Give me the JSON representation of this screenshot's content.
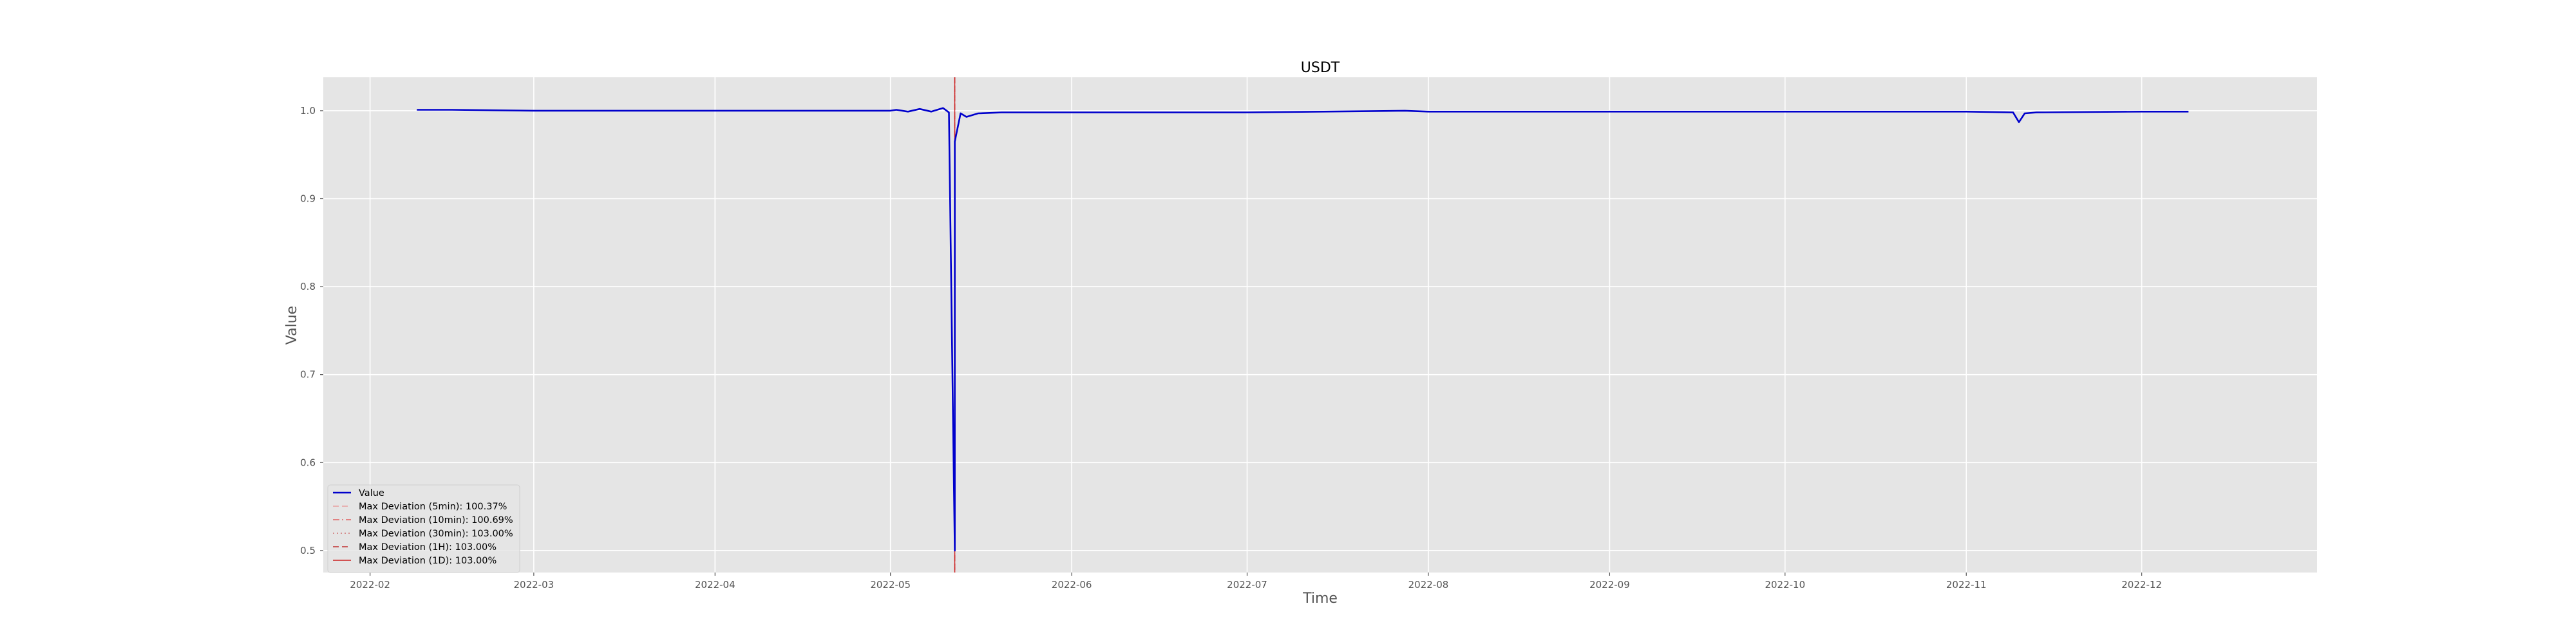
{
  "chart_data": {
    "type": "line",
    "title": "USDT",
    "xlabel": "Time",
    "ylabel": "Value",
    "x_range": [
      "2022-01-24",
      "2022-12-31"
    ],
    "ylim": [
      0.475,
      1.038
    ],
    "x_ticks": [
      "2022-02",
      "2022-03",
      "2022-04",
      "2022-05",
      "2022-06",
      "2022-07",
      "2022-08",
      "2022-09",
      "2022-10",
      "2022-11",
      "2022-12"
    ],
    "y_ticks": [
      "0.5",
      "0.6",
      "0.7",
      "0.8",
      "0.9",
      "1.0"
    ],
    "grid": true,
    "legend_position": "lower-left",
    "series": [
      {
        "name": "Value",
        "color": "#0000cc",
        "x": [
          "2022-02-09",
          "2022-02-15",
          "2022-03-01",
          "2022-04-01",
          "2022-05-01",
          "2022-05-02",
          "2022-05-04",
          "2022-05-06",
          "2022-05-08",
          "2022-05-10",
          "2022-05-11",
          "2022-05-12",
          "2022-05-12",
          "2022-05-13",
          "2022-05-14",
          "2022-05-16",
          "2022-05-20",
          "2022-06-01",
          "2022-07-01",
          "2022-07-28",
          "2022-08-01",
          "2022-09-01",
          "2022-10-01",
          "2022-11-01",
          "2022-11-09",
          "2022-11-10",
          "2022-11-11",
          "2022-11-13",
          "2022-12-01",
          "2022-12-09"
        ],
        "values": [
          1.001,
          1.001,
          1.0,
          1.0,
          1.0,
          1.001,
          0.999,
          1.002,
          0.999,
          1.003,
          0.998,
          0.5,
          0.965,
          0.997,
          0.993,
          0.997,
          0.998,
          0.998,
          0.998,
          1.0,
          0.999,
          0.999,
          0.999,
          0.999,
          0.998,
          0.987,
          0.997,
          0.998,
          0.999,
          0.999
        ]
      }
    ],
    "vertical_lines": [
      {
        "label": "Max Deviation (5min): 100.37%",
        "x": "2022-05-12",
        "color": "#e8a0a0",
        "style": "dashed"
      },
      {
        "label": "Max Deviation (10min): 100.69%",
        "x": "2022-05-12",
        "color": "#e06060",
        "style": "dashdot"
      },
      {
        "label": "Max Deviation (30min): 103.00%",
        "x": "2022-05-12",
        "color": "#d07070",
        "style": "dotted"
      },
      {
        "label": "Max Deviation (1H): 103.00%",
        "x": "2022-05-12",
        "color": "#c03030",
        "style": "dashed"
      },
      {
        "label": "Max Deviation (1D): 103.00%",
        "x": "2022-05-12",
        "color": "#cc2222",
        "style": "solid"
      }
    ]
  }
}
